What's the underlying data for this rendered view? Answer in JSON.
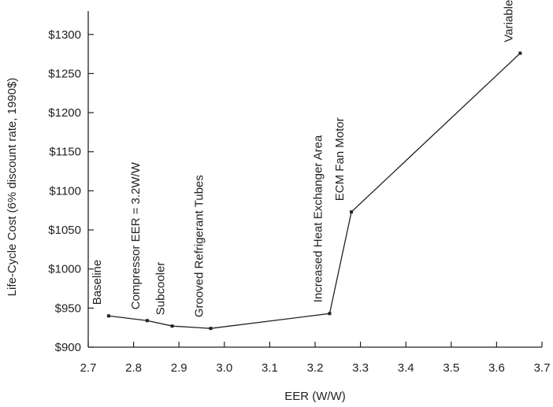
{
  "chart_data": {
    "type": "line",
    "xlabel": "EER (W/W)",
    "ylabel": "Life-Cycle Cost (6% discount rate, 1990$)",
    "xlim": [
      2.7,
      3.7
    ],
    "ylim": [
      900,
      1330
    ],
    "x_ticks": [
      2.7,
      2.8,
      2.9,
      3.0,
      3.1,
      3.2,
      3.3,
      3.4,
      3.5,
      3.6,
      3.7
    ],
    "x_tick_labels": [
      "2.7",
      "2.8",
      "2.9",
      "3.0",
      "3.1",
      "3.2",
      "3.3",
      "3.4",
      "3.5",
      "3.6",
      "3.7"
    ],
    "y_ticks": [
      900,
      950,
      1000,
      1050,
      1100,
      1150,
      1200,
      1250,
      1300
    ],
    "y_tick_labels": [
      "$900",
      "$950",
      "$1000",
      "$1050",
      "$1100",
      "$1150",
      "$1200",
      "$1250",
      "$1300"
    ],
    "grid": false,
    "series": [
      {
        "points": [
          {
            "label": "Baseline",
            "x": 2.745,
            "y": 940
          },
          {
            "label": "Compressor EER = 3.2W/W",
            "x": 2.83,
            "y": 934
          },
          {
            "label": "Subcooler",
            "x": 2.885,
            "y": 927
          },
          {
            "label": "Grooved Refrigerant Tubes",
            "x": 2.97,
            "y": 924
          },
          {
            "label": "Increased Heat Exchanger Area",
            "x": 3.232,
            "y": 943
          },
          {
            "label": "ECM Fan Motor",
            "x": 3.28,
            "y": 1073
          },
          {
            "label": "Variable Speed Compressor",
            "x": 3.652,
            "y": 1276
          }
        ]
      }
    ]
  }
}
